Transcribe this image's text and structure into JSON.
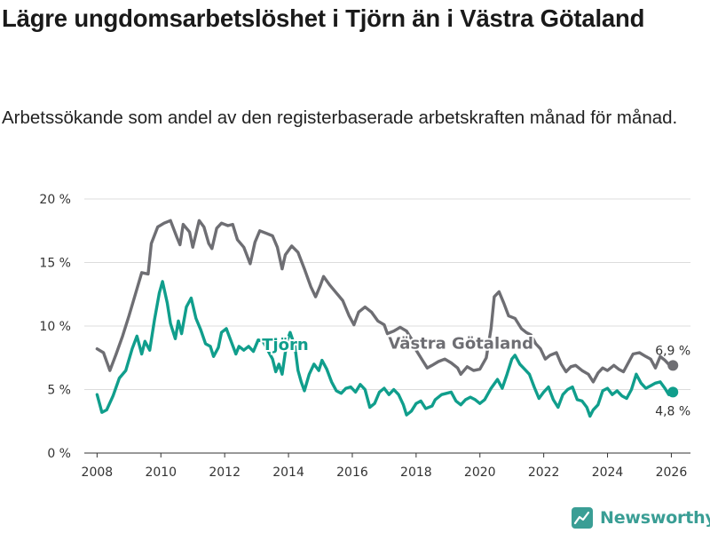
{
  "title": "Lägre ungdomsarbetslöshet i Tjörn än i Västra Götaland",
  "subtitle": "Arbetssökande som andel av den registerbaserade arbetskraften månad för månad.",
  "brand": {
    "name": "Newsworthy",
    "icon": "newsworthy-logo-icon",
    "color": "#3a9e95"
  },
  "chart_data": {
    "type": "line",
    "title": "Lägre ungdomsarbetslöshet i Tjörn än i Västra Götaland",
    "xlabel": "",
    "ylabel": "",
    "xlim": [
      2007.6,
      2026.6
    ],
    "ylim": [
      0,
      20
    ],
    "x_ticks": [
      2008,
      2010,
      2012,
      2014,
      2016,
      2018,
      2020,
      2022,
      2024,
      2026
    ],
    "x_tick_labels": [
      "2008",
      "2010",
      "2012",
      "2014",
      "2016",
      "2018",
      "2020",
      "2022",
      "2024",
      "2026"
    ],
    "y_ticks": [
      0,
      5,
      10,
      15,
      20
    ],
    "y_tick_labels": [
      "0 %",
      "5 %",
      "10 %",
      "15 %",
      "20 %"
    ],
    "grid": true,
    "series": [
      {
        "name": "Västra Götaland",
        "label": "Västra Götaland",
        "color": "#6e6e73",
        "end_label": "6,9 %",
        "points": [
          [
            2008.0,
            8.2
          ],
          [
            2008.2,
            7.9
          ],
          [
            2008.4,
            6.5
          ],
          [
            2008.6,
            7.8
          ],
          [
            2008.8,
            9.2
          ],
          [
            2009.0,
            10.8
          ],
          [
            2009.2,
            12.5
          ],
          [
            2009.4,
            14.2
          ],
          [
            2009.6,
            14.1
          ],
          [
            2009.7,
            16.5
          ],
          [
            2009.9,
            17.8
          ],
          [
            2010.1,
            18.1
          ],
          [
            2010.3,
            18.3
          ],
          [
            2010.5,
            17.0
          ],
          [
            2010.6,
            16.4
          ],
          [
            2010.7,
            18.0
          ],
          [
            2010.9,
            17.4
          ],
          [
            2011.0,
            16.2
          ],
          [
            2011.2,
            18.3
          ],
          [
            2011.35,
            17.8
          ],
          [
            2011.5,
            16.5
          ],
          [
            2011.6,
            16.1
          ],
          [
            2011.75,
            17.7
          ],
          [
            2011.9,
            18.1
          ],
          [
            2012.1,
            17.9
          ],
          [
            2012.25,
            18.0
          ],
          [
            2012.4,
            16.8
          ],
          [
            2012.6,
            16.2
          ],
          [
            2012.8,
            14.9
          ],
          [
            2012.95,
            16.6
          ],
          [
            2013.1,
            17.5
          ],
          [
            2013.3,
            17.3
          ],
          [
            2013.5,
            17.1
          ],
          [
            2013.65,
            16.2
          ],
          [
            2013.8,
            14.5
          ],
          [
            2013.9,
            15.6
          ],
          [
            2014.1,
            16.3
          ],
          [
            2014.3,
            15.8
          ],
          [
            2014.5,
            14.5
          ],
          [
            2014.7,
            13.1
          ],
          [
            2014.85,
            12.3
          ],
          [
            2015.0,
            13.2
          ],
          [
            2015.1,
            13.9
          ],
          [
            2015.3,
            13.2
          ],
          [
            2015.5,
            12.6
          ],
          [
            2015.7,
            12.0
          ],
          [
            2015.9,
            10.8
          ],
          [
            2016.05,
            10.1
          ],
          [
            2016.2,
            11.1
          ],
          [
            2016.4,
            11.5
          ],
          [
            2016.6,
            11.1
          ],
          [
            2016.8,
            10.4
          ],
          [
            2017.0,
            10.1
          ],
          [
            2017.1,
            9.4
          ],
          [
            2017.3,
            9.6
          ],
          [
            2017.5,
            9.9
          ],
          [
            2017.7,
            9.6
          ],
          [
            2017.9,
            8.8
          ],
          [
            2018.0,
            8.1
          ],
          [
            2018.2,
            7.3
          ],
          [
            2018.35,
            6.7
          ],
          [
            2018.5,
            6.9
          ],
          [
            2018.7,
            7.2
          ],
          [
            2018.9,
            7.4
          ],
          [
            2019.1,
            7.1
          ],
          [
            2019.3,
            6.7
          ],
          [
            2019.4,
            6.2
          ],
          [
            2019.6,
            6.8
          ],
          [
            2019.8,
            6.5
          ],
          [
            2020.0,
            6.6
          ],
          [
            2020.2,
            7.5
          ],
          [
            2020.35,
            9.8
          ],
          [
            2020.45,
            12.3
          ],
          [
            2020.6,
            12.7
          ],
          [
            2020.75,
            11.8
          ],
          [
            2020.9,
            10.8
          ],
          [
            2021.1,
            10.6
          ],
          [
            2021.3,
            9.8
          ],
          [
            2021.45,
            9.5
          ],
          [
            2021.6,
            9.3
          ],
          [
            2021.75,
            8.6
          ],
          [
            2021.9,
            8.2
          ],
          [
            2022.05,
            7.4
          ],
          [
            2022.2,
            7.7
          ],
          [
            2022.4,
            7.9
          ],
          [
            2022.55,
            7.0
          ],
          [
            2022.7,
            6.4
          ],
          [
            2022.85,
            6.8
          ],
          [
            2023.0,
            6.9
          ],
          [
            2023.2,
            6.5
          ],
          [
            2023.4,
            6.2
          ],
          [
            2023.55,
            5.6
          ],
          [
            2023.7,
            6.3
          ],
          [
            2023.85,
            6.7
          ],
          [
            2024.0,
            6.5
          ],
          [
            2024.2,
            6.9
          ],
          [
            2024.35,
            6.6
          ],
          [
            2024.5,
            6.4
          ],
          [
            2024.65,
            7.1
          ],
          [
            2024.8,
            7.8
          ],
          [
            2025.0,
            7.9
          ],
          [
            2025.2,
            7.6
          ],
          [
            2025.35,
            7.4
          ],
          [
            2025.5,
            6.7
          ],
          [
            2025.65,
            7.6
          ],
          [
            2025.8,
            7.3
          ],
          [
            2025.95,
            6.9
          ],
          [
            2026.05,
            6.9
          ]
        ]
      },
      {
        "name": "Tjörn",
        "label": "Tjörn",
        "color": "#109e8c",
        "end_label": "4,8 %",
        "points": [
          [
            2008.0,
            4.6
          ],
          [
            2008.15,
            3.2
          ],
          [
            2008.3,
            3.4
          ],
          [
            2008.5,
            4.5
          ],
          [
            2008.7,
            5.9
          ],
          [
            2008.9,
            6.5
          ],
          [
            2009.1,
            8.2
          ],
          [
            2009.25,
            9.2
          ],
          [
            2009.4,
            7.8
          ],
          [
            2009.5,
            8.8
          ],
          [
            2009.65,
            8.1
          ],
          [
            2009.8,
            10.5
          ],
          [
            2009.95,
            12.6
          ],
          [
            2010.05,
            13.5
          ],
          [
            2010.2,
            11.8
          ],
          [
            2010.3,
            10.2
          ],
          [
            2010.45,
            9.0
          ],
          [
            2010.55,
            10.4
          ],
          [
            2010.65,
            9.4
          ],
          [
            2010.8,
            11.5
          ],
          [
            2010.95,
            12.2
          ],
          [
            2011.1,
            10.6
          ],
          [
            2011.25,
            9.7
          ],
          [
            2011.4,
            8.6
          ],
          [
            2011.55,
            8.4
          ],
          [
            2011.65,
            7.6
          ],
          [
            2011.8,
            8.3
          ],
          [
            2011.9,
            9.5
          ],
          [
            2012.05,
            9.8
          ],
          [
            2012.2,
            8.8
          ],
          [
            2012.35,
            7.8
          ],
          [
            2012.45,
            8.4
          ],
          [
            2012.6,
            8.1
          ],
          [
            2012.75,
            8.4
          ],
          [
            2012.9,
            8.0
          ],
          [
            2013.05,
            8.9
          ],
          [
            2013.2,
            8.8
          ],
          [
            2013.35,
            8.1
          ],
          [
            2013.5,
            7.4
          ],
          [
            2013.6,
            6.4
          ],
          [
            2013.7,
            7.0
          ],
          [
            2013.8,
            6.2
          ],
          [
            2013.95,
            8.8
          ],
          [
            2014.05,
            9.5
          ],
          [
            2014.2,
            8.4
          ],
          [
            2014.3,
            6.5
          ],
          [
            2014.4,
            5.6
          ],
          [
            2014.5,
            4.9
          ],
          [
            2014.65,
            6.2
          ],
          [
            2014.8,
            7.0
          ],
          [
            2014.95,
            6.5
          ],
          [
            2015.05,
            7.3
          ],
          [
            2015.2,
            6.6
          ],
          [
            2015.35,
            5.6
          ],
          [
            2015.5,
            4.9
          ],
          [
            2015.65,
            4.7
          ],
          [
            2015.8,
            5.1
          ],
          [
            2015.95,
            5.2
          ],
          [
            2016.1,
            4.8
          ],
          [
            2016.25,
            5.4
          ],
          [
            2016.4,
            5.0
          ],
          [
            2016.55,
            3.6
          ],
          [
            2016.7,
            3.9
          ],
          [
            2016.85,
            4.8
          ],
          [
            2017.0,
            5.1
          ],
          [
            2017.15,
            4.6
          ],
          [
            2017.3,
            5.0
          ],
          [
            2017.45,
            4.6
          ],
          [
            2017.6,
            3.8
          ],
          [
            2017.7,
            3.0
          ],
          [
            2017.85,
            3.3
          ],
          [
            2018.0,
            3.9
          ],
          [
            2018.15,
            4.1
          ],
          [
            2018.3,
            3.5
          ],
          [
            2018.5,
            3.7
          ],
          [
            2018.6,
            4.2
          ],
          [
            2018.8,
            4.6
          ],
          [
            2018.95,
            4.7
          ],
          [
            2019.1,
            4.8
          ],
          [
            2019.25,
            4.1
          ],
          [
            2019.4,
            3.8
          ],
          [
            2019.55,
            4.2
          ],
          [
            2019.7,
            4.4
          ],
          [
            2019.85,
            4.2
          ],
          [
            2020.0,
            3.9
          ],
          [
            2020.15,
            4.2
          ],
          [
            2020.35,
            5.1
          ],
          [
            2020.55,
            5.8
          ],
          [
            2020.7,
            5.1
          ],
          [
            2020.85,
            6.2
          ],
          [
            2021.0,
            7.4
          ],
          [
            2021.1,
            7.7
          ],
          [
            2021.25,
            7.0
          ],
          [
            2021.4,
            6.6
          ],
          [
            2021.55,
            6.2
          ],
          [
            2021.7,
            5.2
          ],
          [
            2021.85,
            4.3
          ],
          [
            2022.0,
            4.8
          ],
          [
            2022.15,
            5.2
          ],
          [
            2022.3,
            4.2
          ],
          [
            2022.45,
            3.6
          ],
          [
            2022.6,
            4.6
          ],
          [
            2022.75,
            5.0
          ],
          [
            2022.9,
            5.2
          ],
          [
            2023.05,
            4.2
          ],
          [
            2023.2,
            4.1
          ],
          [
            2023.35,
            3.6
          ],
          [
            2023.45,
            2.9
          ],
          [
            2023.55,
            3.4
          ],
          [
            2023.7,
            3.8
          ],
          [
            2023.85,
            4.9
          ],
          [
            2024.0,
            5.1
          ],
          [
            2024.15,
            4.6
          ],
          [
            2024.3,
            4.9
          ],
          [
            2024.45,
            4.5
          ],
          [
            2024.6,
            4.3
          ],
          [
            2024.75,
            5.0
          ],
          [
            2024.9,
            6.2
          ],
          [
            2025.05,
            5.5
          ],
          [
            2025.2,
            5.1
          ],
          [
            2025.35,
            5.3
          ],
          [
            2025.5,
            5.5
          ],
          [
            2025.65,
            5.6
          ],
          [
            2025.8,
            5.1
          ],
          [
            2025.92,
            4.6
          ],
          [
            2026.05,
            4.8
          ]
        ]
      }
    ]
  }
}
